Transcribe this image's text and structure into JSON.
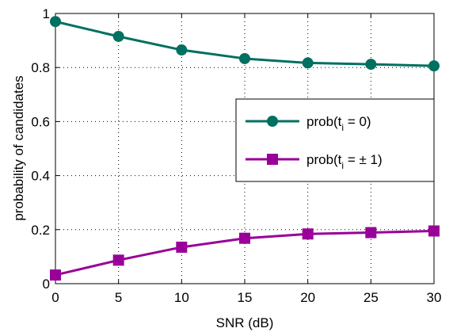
{
  "chart_data": {
    "type": "line",
    "title": "",
    "xlabel": "SNR (dB)",
    "ylabel": "probability of candidates",
    "x": [
      0,
      5,
      10,
      15,
      20,
      25,
      30
    ],
    "xlim": [
      0,
      30
    ],
    "ylim": [
      0,
      1
    ],
    "xticks": [
      0,
      5,
      10,
      15,
      20,
      25,
      30
    ],
    "yticks": [
      0,
      0.2,
      0.4,
      0.6,
      0.8,
      1
    ],
    "xtick_labels": [
      "0",
      "5",
      "10",
      "15",
      "20",
      "25",
      "30"
    ],
    "ytick_labels": [
      "0",
      "0.2",
      "0.4",
      "0.6",
      "0.8",
      "1"
    ],
    "grid": true,
    "legend_position": "right",
    "series": [
      {
        "legend_prefix": "prob(t",
        "legend_sub": "i",
        "legend_suffix": " = 0)",
        "color": "#007060",
        "marker": "circle",
        "values": [
          0.97,
          0.915,
          0.865,
          0.833,
          0.817,
          0.812,
          0.806
        ]
      },
      {
        "legend_prefix": "prob(t",
        "legend_sub": "i",
        "legend_suffix": " = ± 1)",
        "color": "#990099",
        "marker": "square",
        "values": [
          0.032,
          0.087,
          0.135,
          0.168,
          0.184,
          0.189,
          0.195
        ]
      }
    ]
  }
}
